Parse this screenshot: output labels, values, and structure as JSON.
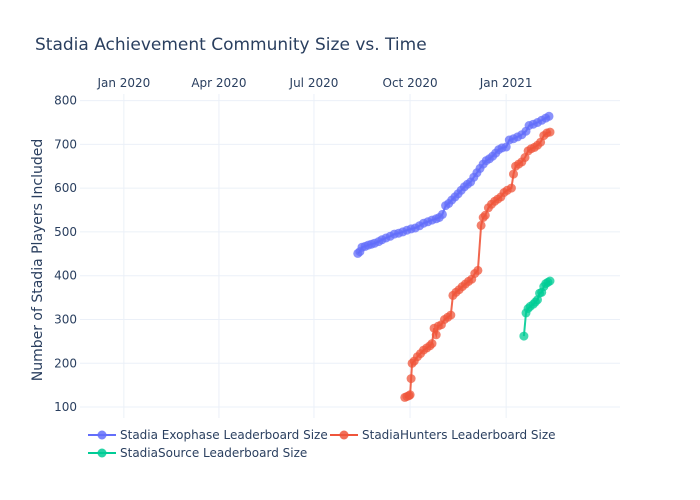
{
  "chart_data": {
    "type": "line",
    "title": "Stadia Achievement Community Size vs. Time",
    "xlabel": "",
    "ylabel": "Number of Stadia Players Included",
    "x_range": [
      "2019-11-20",
      "2021-04-20"
    ],
    "ylim": [
      75,
      815
    ],
    "y_ticks": [
      100,
      200,
      300,
      400,
      500,
      600,
      700,
      800
    ],
    "x_ticks": [
      {
        "date": "2020-01-01",
        "label": "Jan 2020"
      },
      {
        "date": "2020-04-01",
        "label": "Apr 2020"
      },
      {
        "date": "2020-07-01",
        "label": "Jul 2020"
      },
      {
        "date": "2020-10-01",
        "label": "Oct 2020"
      },
      {
        "date": "2021-01-01",
        "label": "Jan 2021"
      }
    ],
    "grid": true,
    "legend_position": "bottom",
    "series": [
      {
        "name": "Stadia Exophase Leaderboard Size",
        "color": "#636efa",
        "points": [
          [
            "2020-08-12",
            451
          ],
          [
            "2020-08-14",
            455
          ],
          [
            "2020-08-16",
            465
          ],
          [
            "2020-08-19",
            467
          ],
          [
            "2020-08-22",
            470
          ],
          [
            "2020-08-25",
            472
          ],
          [
            "2020-08-28",
            474
          ],
          [
            "2020-09-01",
            478
          ],
          [
            "2020-09-04",
            482
          ],
          [
            "2020-09-08",
            486
          ],
          [
            "2020-09-12",
            490
          ],
          [
            "2020-09-16",
            495
          ],
          [
            "2020-09-20",
            497
          ],
          [
            "2020-09-24",
            500
          ],
          [
            "2020-09-28",
            504
          ],
          [
            "2020-10-02",
            507
          ],
          [
            "2020-10-06",
            509
          ],
          [
            "2020-10-10",
            514
          ],
          [
            "2020-10-14",
            520
          ],
          [
            "2020-10-18",
            523
          ],
          [
            "2020-10-22",
            527
          ],
          [
            "2020-10-26",
            530
          ],
          [
            "2020-10-29",
            533
          ],
          [
            "2020-11-01",
            540
          ],
          [
            "2020-11-04",
            560
          ],
          [
            "2020-11-07",
            565
          ],
          [
            "2020-11-10",
            573
          ],
          [
            "2020-11-13",
            580
          ],
          [
            "2020-11-16",
            587
          ],
          [
            "2020-11-19",
            595
          ],
          [
            "2020-11-22",
            603
          ],
          [
            "2020-11-25",
            609
          ],
          [
            "2020-11-28",
            614
          ],
          [
            "2020-12-01",
            625
          ],
          [
            "2020-12-04",
            635
          ],
          [
            "2020-12-07",
            645
          ],
          [
            "2020-12-10",
            655
          ],
          [
            "2020-12-13",
            663
          ],
          [
            "2020-12-16",
            667
          ],
          [
            "2020-12-19",
            673
          ],
          [
            "2020-12-22",
            680
          ],
          [
            "2020-12-25",
            688
          ],
          [
            "2020-12-28",
            692
          ],
          [
            "2021-01-01",
            694
          ],
          [
            "2021-01-04",
            710
          ],
          [
            "2021-01-08",
            713
          ],
          [
            "2021-01-12",
            717
          ],
          [
            "2021-01-16",
            722
          ],
          [
            "2021-01-20",
            730
          ],
          [
            "2021-01-23",
            743
          ],
          [
            "2021-01-27",
            746
          ],
          [
            "2021-01-31",
            750
          ],
          [
            "2021-02-04",
            755
          ],
          [
            "2021-02-08",
            760
          ],
          [
            "2021-02-11",
            764
          ]
        ]
      },
      {
        "name": "StadiaHunters Leaderboard Size",
        "color": "#ef553b",
        "points": [
          [
            "2020-09-26",
            122
          ],
          [
            "2020-09-28",
            124
          ],
          [
            "2020-09-30",
            126
          ],
          [
            "2020-10-01",
            128
          ],
          [
            "2020-10-02",
            165
          ],
          [
            "2020-10-03",
            200
          ],
          [
            "2020-10-05",
            205
          ],
          [
            "2020-10-08",
            215
          ],
          [
            "2020-10-11",
            222
          ],
          [
            "2020-10-14",
            230
          ],
          [
            "2020-10-17",
            235
          ],
          [
            "2020-10-20",
            240
          ],
          [
            "2020-10-22",
            245
          ],
          [
            "2020-10-24",
            280
          ],
          [
            "2020-10-26",
            265
          ],
          [
            "2020-10-28",
            285
          ],
          [
            "2020-10-31",
            288
          ],
          [
            "2020-11-03",
            300
          ],
          [
            "2020-11-06",
            305
          ],
          [
            "2020-11-09",
            310
          ],
          [
            "2020-11-11",
            355
          ],
          [
            "2020-11-14",
            362
          ],
          [
            "2020-11-17",
            368
          ],
          [
            "2020-11-20",
            375
          ],
          [
            "2020-11-23",
            381
          ],
          [
            "2020-11-26",
            387
          ],
          [
            "2020-11-29",
            392
          ],
          [
            "2020-12-02",
            405
          ],
          [
            "2020-12-05",
            412
          ],
          [
            "2020-12-08",
            515
          ],
          [
            "2020-12-10",
            533
          ],
          [
            "2020-12-12",
            538
          ],
          [
            "2020-12-15",
            555
          ],
          [
            "2020-12-18",
            563
          ],
          [
            "2020-12-21",
            570
          ],
          [
            "2020-12-24",
            575
          ],
          [
            "2020-12-27",
            580
          ],
          [
            "2020-12-30",
            590
          ],
          [
            "2021-01-02",
            595
          ],
          [
            "2021-01-06",
            600
          ],
          [
            "2021-01-08",
            632
          ],
          [
            "2021-01-10",
            650
          ],
          [
            "2021-01-13",
            655
          ],
          [
            "2021-01-16",
            660
          ],
          [
            "2021-01-19",
            670
          ],
          [
            "2021-01-22",
            685
          ],
          [
            "2021-01-25",
            690
          ],
          [
            "2021-01-28",
            693
          ],
          [
            "2021-01-31",
            698
          ],
          [
            "2021-02-03",
            705
          ],
          [
            "2021-02-06",
            720
          ],
          [
            "2021-02-09",
            726
          ],
          [
            "2021-02-12",
            728
          ]
        ]
      },
      {
        "name": "StadiaSource Leaderboard Size",
        "color": "#00cc96",
        "points": [
          [
            "2021-01-18",
            262
          ],
          [
            "2021-01-20",
            315
          ],
          [
            "2021-01-22",
            325
          ],
          [
            "2021-01-24",
            330
          ],
          [
            "2021-01-27",
            335
          ],
          [
            "2021-01-29",
            340
          ],
          [
            "2021-01-31",
            345
          ],
          [
            "2021-02-02",
            360
          ],
          [
            "2021-02-04",
            362
          ],
          [
            "2021-02-06",
            375
          ],
          [
            "2021-02-08",
            382
          ],
          [
            "2021-02-10",
            385
          ],
          [
            "2021-02-12",
            388
          ]
        ]
      }
    ]
  }
}
